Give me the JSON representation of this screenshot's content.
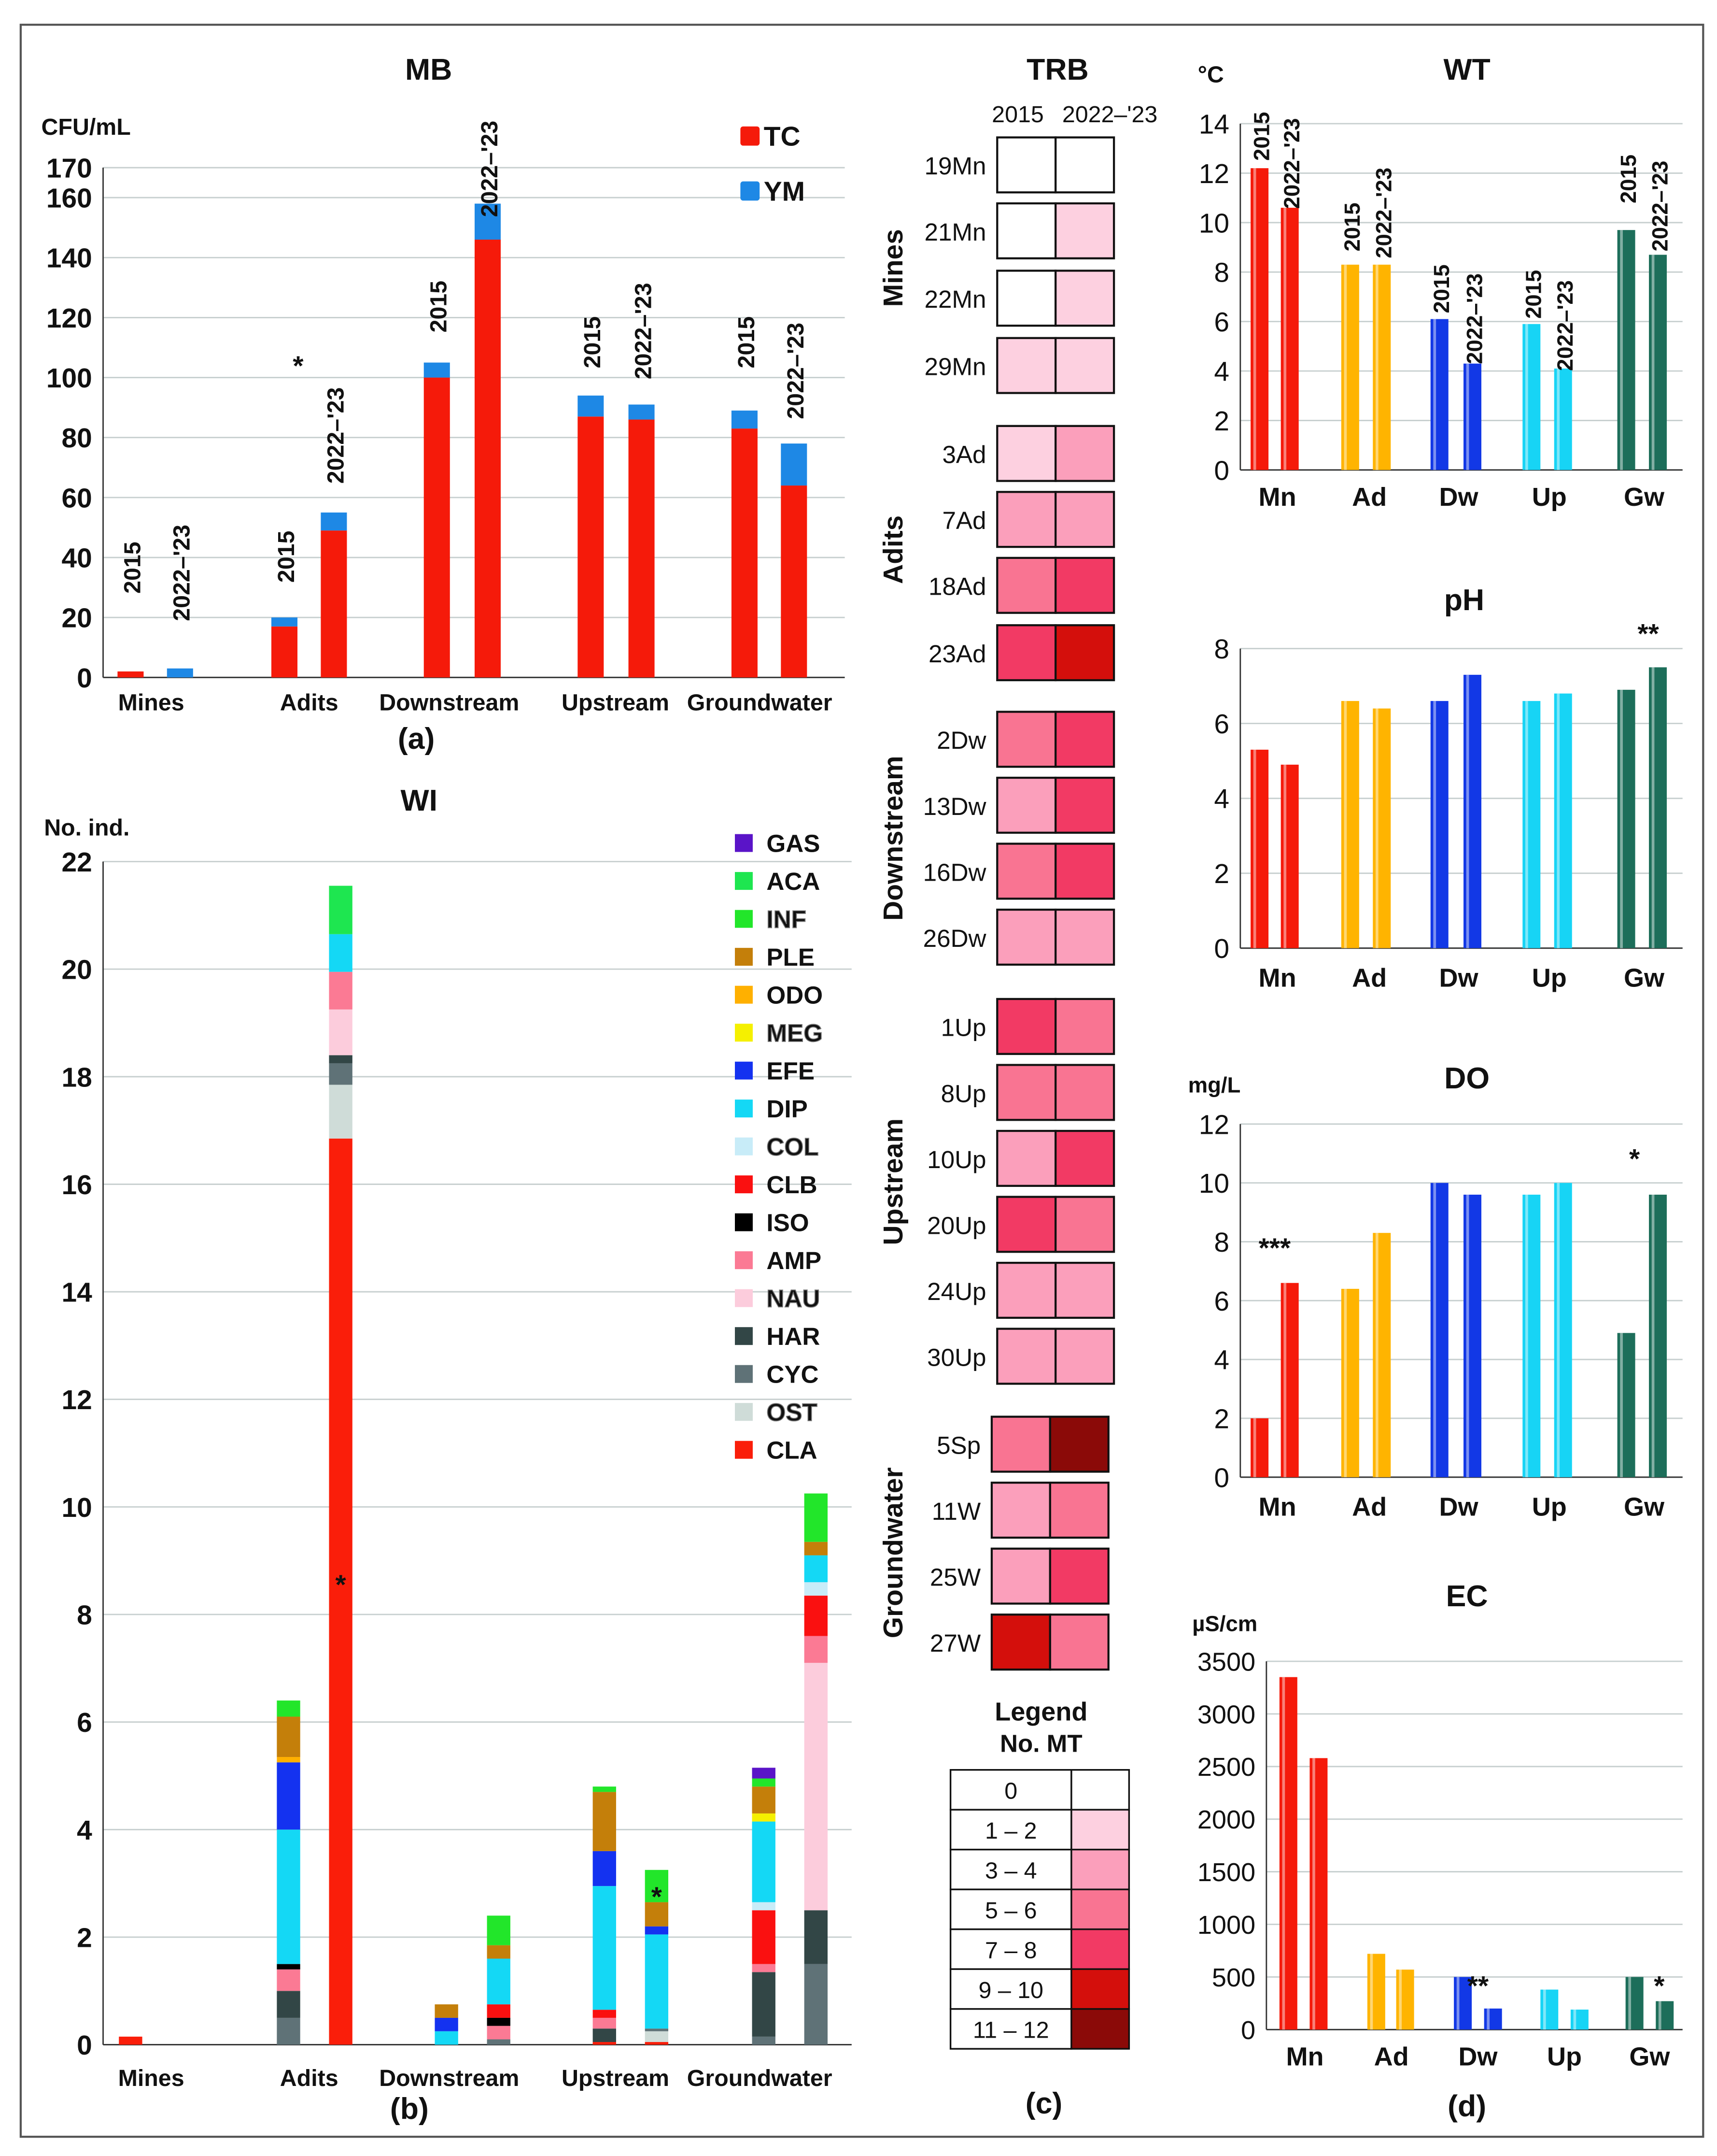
{
  "chart_data": [
    {
      "id": "a",
      "panel_label": "(a)",
      "type": "bar",
      "stacked": true,
      "title": "MB",
      "ylabel": "CFU/mL",
      "ylim": [
        0,
        170
      ],
      "yticks": [
        0,
        20,
        40,
        60,
        80,
        100,
        120,
        140,
        160,
        170
      ],
      "categories": [
        "Mines",
        "Adits",
        "Downstream",
        "Upstream",
        "Groundwater"
      ],
      "periods": [
        "2015",
        "2022–'23"
      ],
      "legend_position": "top-right",
      "series": [
        {
          "name": "TC",
          "color": "#f51a0a",
          "values": [
            [
              2,
              0
            ],
            [
              17,
              49
            ],
            [
              100,
              146
            ],
            [
              87,
              86
            ],
            [
              83,
              64
            ]
          ]
        },
        {
          "name": "YM",
          "color": "#1e88e5",
          "values": [
            [
              0,
              3
            ],
            [
              3,
              6
            ],
            [
              5,
              12
            ],
            [
              7,
              5
            ],
            [
              6,
              14
            ]
          ]
        }
      ],
      "annotations": [
        {
          "category": "Adits",
          "period": "2015",
          "text": "*"
        }
      ]
    },
    {
      "id": "b",
      "panel_label": "(b)",
      "type": "bar",
      "stacked": true,
      "title": "WI",
      "ylabel": "No. ind.",
      "ylim": [
        0,
        22
      ],
      "yticks": [
        0,
        2,
        4,
        6,
        8,
        10,
        12,
        14,
        16,
        18,
        20,
        22
      ],
      "categories": [
        "Mines",
        "Adits",
        "Downstream",
        "Upstream",
        "Groundwater"
      ],
      "periods": [
        "2015",
        "2022–'23"
      ],
      "legend_position": "top-right",
      "legend_order": [
        "GAS",
        "ACA",
        "INF",
        "PLE",
        "ODO",
        "MEG",
        "EFE",
        "DIP",
        "COL",
        "CLB",
        "ISO",
        "AMP",
        "NAU",
        "HAR",
        "CYC",
        "OST",
        "CLA"
      ],
      "series": [
        {
          "name": "CLA",
          "color": "#fa1e0a",
          "values": [
            [
              0.15,
              0
            ],
            [
              0,
              16.85
            ],
            [
              0,
              0
            ],
            [
              0.05,
              0.05
            ],
            [
              0,
              0
            ]
          ]
        },
        {
          "name": "OST",
          "color": "#cfdcd8",
          "values": [
            [
              0,
              0
            ],
            [
              0,
              1.0
            ],
            [
              0,
              0
            ],
            [
              0,
              0.2
            ],
            [
              0,
              0
            ]
          ]
        },
        {
          "name": "CYC",
          "color": "#5f7277",
          "values": [
            [
              0,
              0
            ],
            [
              0.5,
              0.4
            ],
            [
              0,
              0.1
            ],
            [
              0,
              0.05
            ],
            [
              0.15,
              1.5
            ]
          ]
        },
        {
          "name": "HAR",
          "color": "#324646",
          "values": [
            [
              0,
              0
            ],
            [
              0.5,
              0.15
            ],
            [
              0,
              0
            ],
            [
              0.25,
              0
            ],
            [
              1.2,
              1.0
            ]
          ]
        },
        {
          "name": "NAU",
          "color": "#fcccdc",
          "values": [
            [
              0,
              0
            ],
            [
              0,
              0.85
            ],
            [
              0,
              0
            ],
            [
              0,
              0
            ],
            [
              0,
              4.6
            ]
          ]
        },
        {
          "name": "AMP",
          "color": "#fb7a94",
          "values": [
            [
              0,
              0
            ],
            [
              0.4,
              0.7
            ],
            [
              0,
              0.25
            ],
            [
              0.2,
              0
            ],
            [
              0.15,
              0.5
            ]
          ]
        },
        {
          "name": "ISO",
          "color": "#000000",
          "values": [
            [
              0,
              0
            ],
            [
              0.1,
              0
            ],
            [
              0,
              0.15
            ],
            [
              0,
              0
            ],
            [
              0,
              0
            ]
          ]
        },
        {
          "name": "CLB",
          "color": "#fa1010",
          "values": [
            [
              0,
              0
            ],
            [
              0,
              0
            ],
            [
              0,
              0.25
            ],
            [
              0.15,
              0
            ],
            [
              1.0,
              0.75
            ]
          ]
        },
        {
          "name": "COL",
          "color": "#c8ecf8",
          "values": [
            [
              0,
              0
            ],
            [
              0,
              0
            ],
            [
              0,
              0
            ],
            [
              0,
              0
            ],
            [
              0.15,
              0.25
            ]
          ]
        },
        {
          "name": "DIP",
          "color": "#14d8f5",
          "values": [
            [
              0,
              0
            ],
            [
              2.5,
              0.7
            ],
            [
              0.25,
              0.85
            ],
            [
              2.3,
              1.75
            ],
            [
              1.5,
              0.5
            ]
          ]
        },
        {
          "name": "EFE",
          "color": "#1432f0",
          "values": [
            [
              0,
              0
            ],
            [
              1.25,
              0
            ],
            [
              0.25,
              0
            ],
            [
              0.65,
              0.15
            ],
            [
              0,
              0
            ]
          ]
        },
        {
          "name": "MEG",
          "color": "#f5f000",
          "values": [
            [
              0,
              0
            ],
            [
              0,
              0
            ],
            [
              0,
              0
            ],
            [
              0,
              0
            ],
            [
              0.15,
              0
            ]
          ]
        },
        {
          "name": "ODO",
          "color": "#ffb000",
          "values": [
            [
              0,
              0
            ],
            [
              0.1,
              0
            ],
            [
              0,
              0
            ],
            [
              0,
              0
            ],
            [
              0,
              0
            ]
          ]
        },
        {
          "name": "PLE",
          "color": "#c47f0a",
          "values": [
            [
              0,
              0
            ],
            [
              0.75,
              0
            ],
            [
              0.25,
              0.25
            ],
            [
              1.1,
              0.45
            ],
            [
              0.5,
              0.25
            ]
          ]
        },
        {
          "name": "INF",
          "color": "#22e62a",
          "values": [
            [
              0,
              0
            ],
            [
              0.3,
              0
            ],
            [
              0,
              0.55
            ],
            [
              0.1,
              0.6
            ],
            [
              0.15,
              0.9
            ]
          ]
        },
        {
          "name": "ACA",
          "color": "#1ee650",
          "values": [
            [
              0,
              0
            ],
            [
              0,
              0.9
            ],
            [
              0,
              0
            ],
            [
              0,
              0
            ],
            [
              0,
              0
            ]
          ]
        },
        {
          "name": "GAS",
          "color": "#5a14c8",
          "values": [
            [
              0,
              0
            ],
            [
              0,
              0
            ],
            [
              0,
              0
            ],
            [
              0,
              0
            ],
            [
              0.2,
              0
            ]
          ]
        }
      ],
      "annotations": [
        {
          "category": "Adits",
          "period": "2022–'23",
          "text": "*"
        },
        {
          "category": "Upstream",
          "period": "2022–'23",
          "text": "*"
        }
      ]
    },
    {
      "id": "c",
      "panel_label": "(c)",
      "type": "heatmap",
      "title": "TRB",
      "columns": [
        "2015",
        "2022–'23"
      ],
      "legend_title": "Legend",
      "legend_subtitle": "No. MT",
      "legend": [
        {
          "label": "0",
          "color": "#ffffff"
        },
        {
          "label": "1 – 2",
          "color": "#fdd0e0"
        },
        {
          "label": "3 – 4",
          "color": "#fb9fbb"
        },
        {
          "label": "5 – 6",
          "color": "#f97492"
        },
        {
          "label": "7 – 8",
          "color": "#f23a64"
        },
        {
          "label": "9 – 10",
          "color": "#d40f0c"
        },
        {
          "label": "11 – 12",
          "color": "#8b0a08"
        }
      ],
      "groups": [
        {
          "name": "Mines",
          "rows": [
            {
              "site": "19Mn",
              "levels": [
                0,
                0
              ]
            },
            {
              "site": "21Mn",
              "levels": [
                0,
                1
              ]
            },
            {
              "site": "22Mn",
              "levels": [
                0,
                1
              ]
            },
            {
              "site": "29Mn",
              "levels": [
                1,
                1
              ]
            }
          ]
        },
        {
          "name": "Adits",
          "rows": [
            {
              "site": "3Ad",
              "levels": [
                1,
                2
              ]
            },
            {
              "site": "7Ad",
              "levels": [
                2,
                2
              ]
            },
            {
              "site": "18Ad",
              "levels": [
                3,
                4
              ]
            },
            {
              "site": "23Ad",
              "levels": [
                4,
                5
              ]
            }
          ]
        },
        {
          "name": "Downstream",
          "rows": [
            {
              "site": "2Dw",
              "levels": [
                3,
                4
              ]
            },
            {
              "site": "13Dw",
              "levels": [
                2,
                4
              ]
            },
            {
              "site": "16Dw",
              "levels": [
                3,
                4
              ]
            },
            {
              "site": "26Dw",
              "levels": [
                2,
                2
              ]
            }
          ]
        },
        {
          "name": "Upstream",
          "rows": [
            {
              "site": "1Up",
              "levels": [
                4,
                3
              ]
            },
            {
              "site": "8Up",
              "levels": [
                3,
                3
              ]
            },
            {
              "site": "10Up",
              "levels": [
                2,
                4
              ]
            },
            {
              "site": "20Up",
              "levels": [
                4,
                3
              ]
            },
            {
              "site": "24Up",
              "levels": [
                2,
                2
              ]
            },
            {
              "site": "30Up",
              "levels": [
                2,
                2
              ]
            }
          ]
        },
        {
          "name": "Groundwater",
          "rows": [
            {
              "site": "5Sp",
              "levels": [
                3,
                6
              ]
            },
            {
              "site": "11W",
              "levels": [
                2,
                3
              ]
            },
            {
              "site": "25W",
              "levels": [
                2,
                4
              ]
            },
            {
              "site": "27W",
              "levels": [
                5,
                3
              ]
            }
          ]
        }
      ]
    },
    {
      "id": "d-wt",
      "panel_label": "(d)",
      "type": "bar",
      "title": "WT",
      "ylabel": "°C",
      "ylim": [
        0,
        14
      ],
      "yticks": [
        0,
        2,
        4,
        6,
        8,
        10,
        12,
        14
      ],
      "categories": [
        "Mn",
        "Ad",
        "Dw",
        "Up",
        "Gw"
      ],
      "periods": [
        "2015",
        "2022–'23"
      ],
      "colors": [
        "#f51a0a",
        "#ffb400",
        "#1238e6",
        "#17d4f5",
        "#1d6e5a"
      ],
      "values": [
        [
          12.2,
          10.6
        ],
        [
          8.3,
          8.3
        ],
        [
          6.1,
          4.3
        ],
        [
          5.9,
          4.1
        ],
        [
          9.7,
          8.7
        ]
      ],
      "annotations": []
    },
    {
      "id": "d-ph",
      "type": "bar",
      "title": "pH",
      "ylabel": "",
      "ylim": [
        0,
        8
      ],
      "yticks": [
        0,
        2,
        4,
        6,
        8
      ],
      "categories": [
        "Mn",
        "Ad",
        "Dw",
        "Up",
        "Gw"
      ],
      "periods": [
        "2015",
        "2022–'23"
      ],
      "colors": [
        "#f51a0a",
        "#ffb400",
        "#1238e6",
        "#17d4f5",
        "#1d6e5a"
      ],
      "values": [
        [
          5.3,
          4.9
        ],
        [
          6.6,
          6.4
        ],
        [
          6.6,
          7.3
        ],
        [
          6.6,
          6.8
        ],
        [
          6.9,
          7.5
        ]
      ],
      "annotations": [
        {
          "category": "Gw",
          "text": "**"
        }
      ]
    },
    {
      "id": "d-do",
      "type": "bar",
      "title": "DO",
      "ylabel": "mg/L",
      "ylim": [
        0,
        12
      ],
      "yticks": [
        0,
        2,
        4,
        6,
        8,
        10,
        12
      ],
      "categories": [
        "Mn",
        "Ad",
        "Dw",
        "Up",
        "Gw"
      ],
      "periods": [
        "2015",
        "2022–'23"
      ],
      "colors": [
        "#f51a0a",
        "#ffb400",
        "#1238e6",
        "#17d4f5",
        "#1d6e5a"
      ],
      "values": [
        [
          2.0,
          6.6
        ],
        [
          6.4,
          8.3
        ],
        [
          10.0,
          9.6
        ],
        [
          9.6,
          10.0
        ],
        [
          4.9,
          9.6
        ]
      ],
      "annotations": [
        {
          "category": "Mn",
          "text": "***"
        },
        {
          "category": "Gw",
          "text": "*"
        }
      ]
    },
    {
      "id": "d-ec",
      "type": "bar",
      "title": "EC",
      "ylabel": "µS/cm",
      "ylim": [
        0,
        3500
      ],
      "yticks": [
        0,
        500,
        1000,
        1500,
        2000,
        2500,
        3000,
        3500
      ],
      "categories": [
        "Mn",
        "Ad",
        "Dw",
        "Up",
        "Gw"
      ],
      "periods": [
        "2015",
        "2022–'23"
      ],
      "colors": [
        "#f51a0a",
        "#ffb400",
        "#1238e6",
        "#17d4f5",
        "#1d6e5a"
      ],
      "values": [
        [
          3350,
          2580
        ],
        [
          720,
          570
        ],
        [
          500,
          200
        ],
        [
          380,
          190
        ],
        [
          500,
          270
        ]
      ],
      "annotations": [
        {
          "category": "Dw",
          "text": "**"
        },
        {
          "category": "Gw",
          "text": "*"
        }
      ]
    }
  ]
}
